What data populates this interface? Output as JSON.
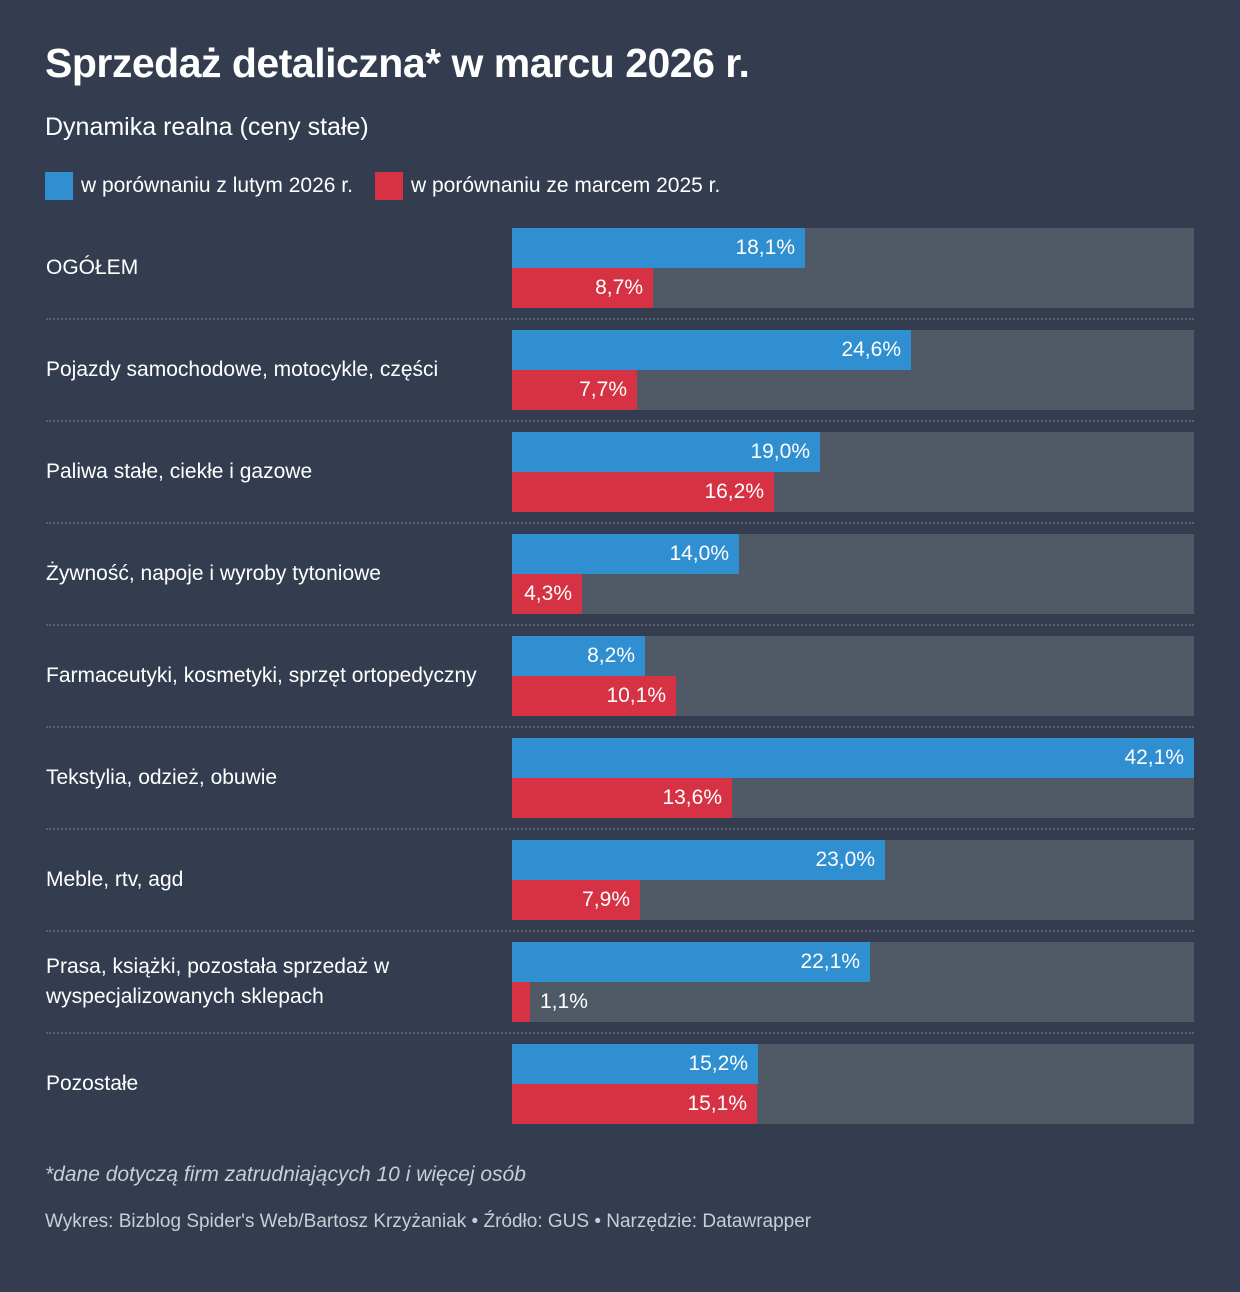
{
  "header": {
    "title": "Sprzedaż detaliczna* w marcu 2026 r.",
    "subtitle": "Dynamika realna (ceny stałe)"
  },
  "legend": [
    {
      "label": "w porównaniu z lutym 2026 r.",
      "color": "#2f8fd0"
    },
    {
      "label": "w porównaniu ze marcem 2025 r.",
      "color": "#d63243"
    }
  ],
  "chart_data": {
    "type": "bar",
    "orientation": "horizontal",
    "title": "Sprzedaż detaliczna* w marcu 2026 r.",
    "subtitle": "Dynamika realna (ceny stałe)",
    "xlabel": "",
    "ylabel": "",
    "unit": "%",
    "xlim": [
      0,
      42.1
    ],
    "grid": false,
    "legend_position": "top-left",
    "categories": [
      "OGÓŁEM",
      "Pojazdy samochodowe, motocykle, części",
      "Paliwa stałe, ciekłe i gazowe",
      "Żywność, napoje i wyroby tytoniowe",
      "Farmaceutyki, kosmetyki, sprzęt ortopedyczny",
      "Tekstylia, odzież, obuwie",
      "Meble, rtv, agd",
      "Prasa, książki, pozostała sprzedaż w wyspecjalizowanych sklepach",
      "Pozostałe"
    ],
    "series": [
      {
        "name": "w porównaniu z lutym 2026 r.",
        "color": "#2f8fd0",
        "values": [
          18.1,
          24.6,
          19.0,
          14.0,
          8.2,
          42.1,
          23.0,
          22.1,
          15.2
        ],
        "labels": [
          "18,1%",
          "24,6%",
          "19,0%",
          "14,0%",
          "8,2%",
          "42,1%",
          "23,0%",
          "22,1%",
          "15,2%"
        ]
      },
      {
        "name": "w porównaniu ze marcem 2025 r.",
        "color": "#d63243",
        "values": [
          8.7,
          7.7,
          16.2,
          4.3,
          10.1,
          13.6,
          7.9,
          1.1,
          15.1
        ],
        "labels": [
          "8,7%",
          "7,7%",
          "16,2%",
          "4,3%",
          "10,1%",
          "13,6%",
          "7,9%",
          "1,1%",
          "15,1%"
        ]
      }
    ]
  },
  "footer": {
    "note": "*dane dotyczą firm zatrudniających 10 i więcej osób",
    "credits": "Wykres: Bizblog Spider's Web/Bartosz Krzyżaniak • Źródło: GUS • Narzędzie: Datawrapper"
  }
}
